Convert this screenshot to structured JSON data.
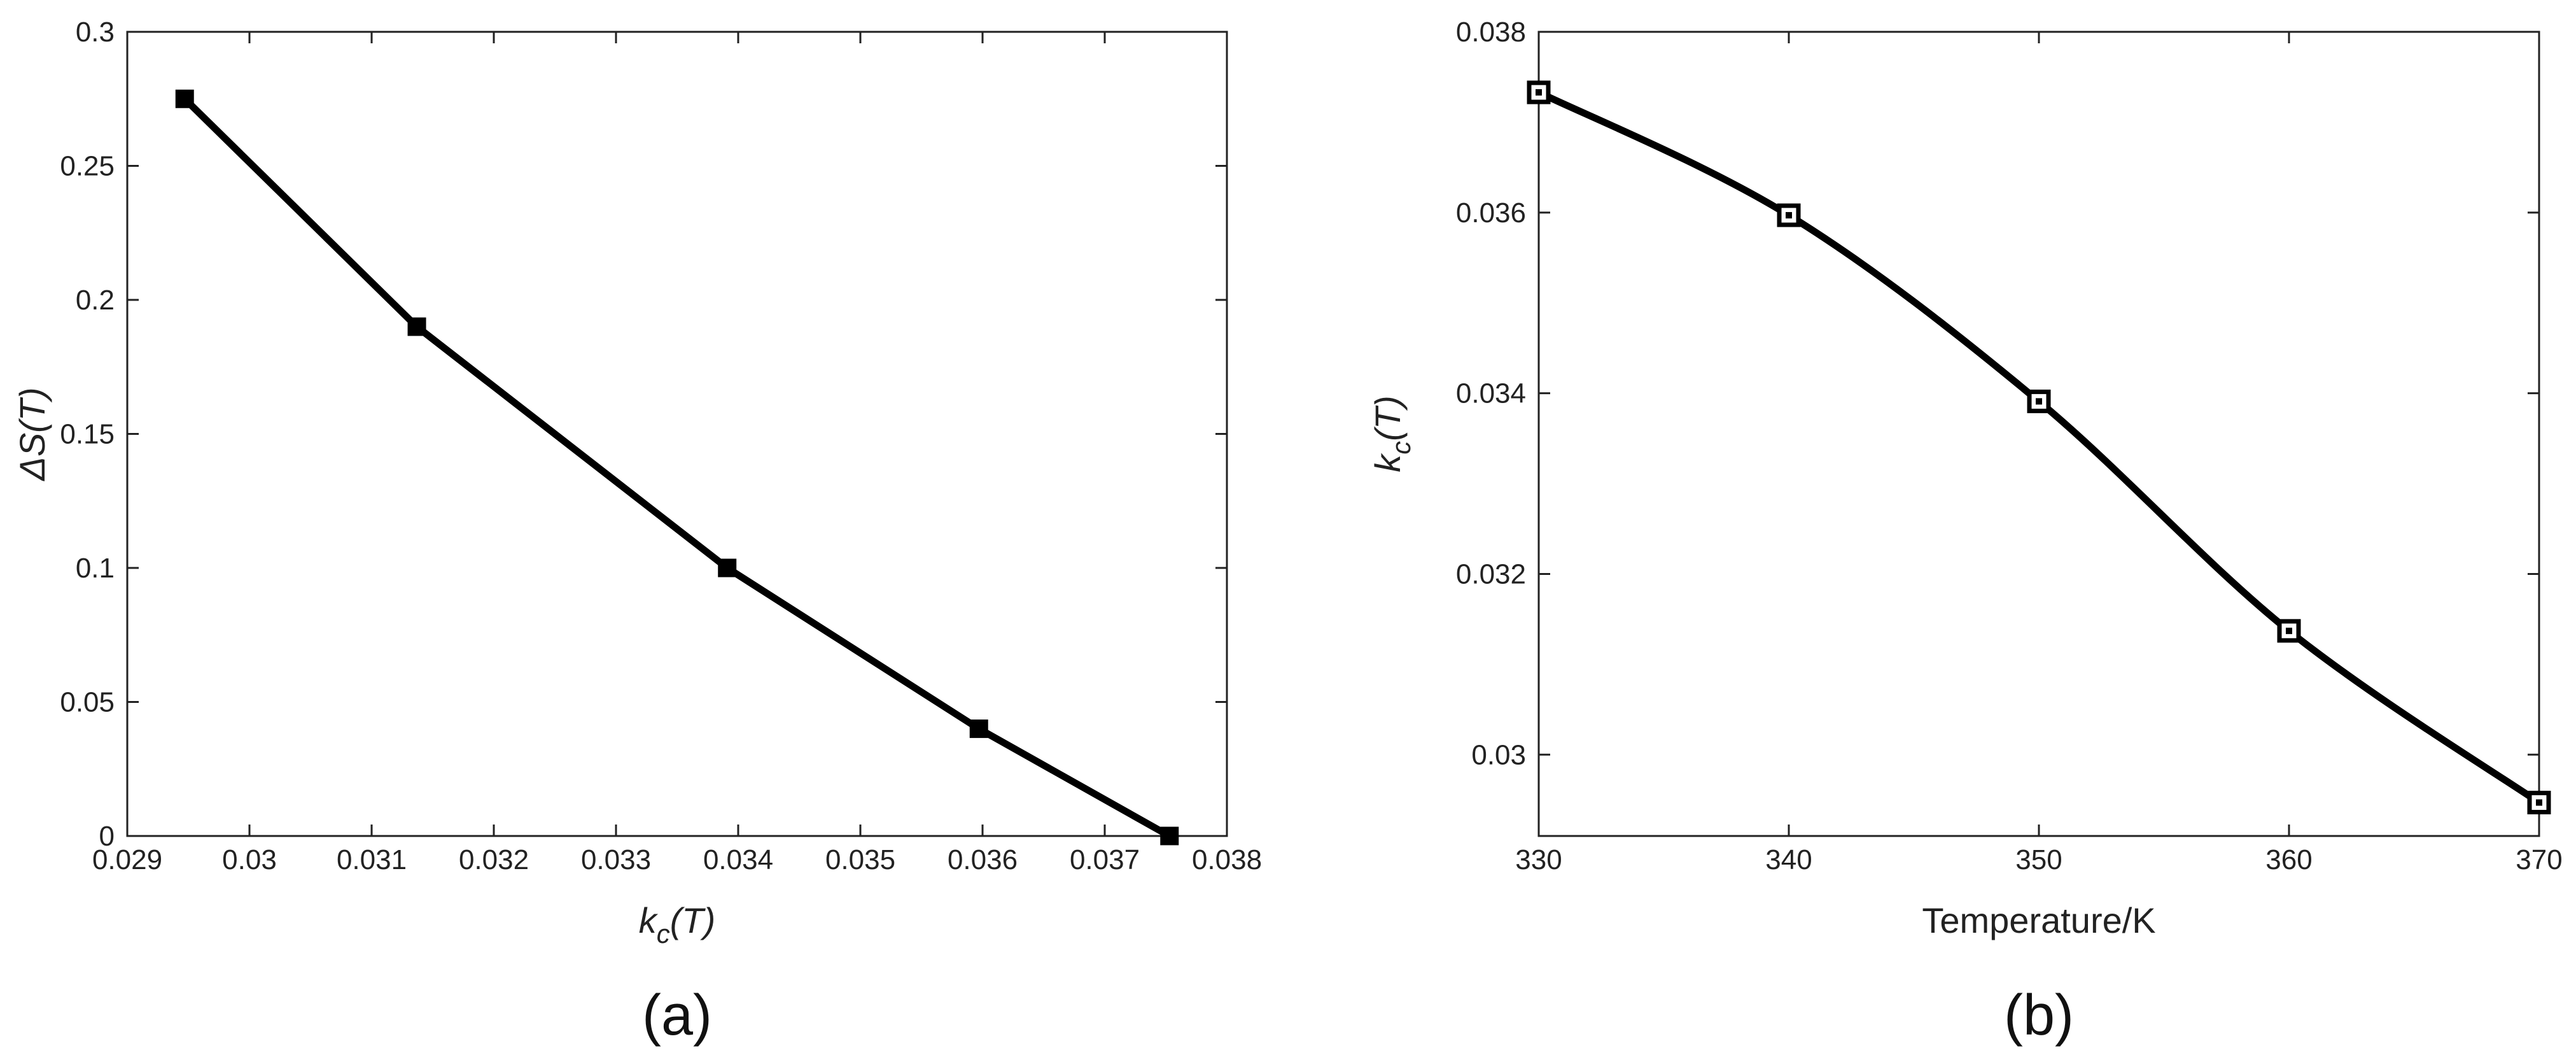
{
  "chart_data": [
    {
      "type": "line",
      "panel_label": "(a)",
      "title": "",
      "xlabel": "k_c(T)",
      "ylabel": "ΔS(T)",
      "xlim": [
        0.029,
        0.038
      ],
      "ylim": [
        0,
        0.3
      ],
      "xticks": [
        0.029,
        0.03,
        0.031,
        0.032,
        0.033,
        0.034,
        0.035,
        0.036,
        0.037,
        0.038
      ],
      "xtick_labels": [
        "0.029",
        "0.03",
        "0.031",
        "0.032",
        "0.033",
        "0.034",
        "0.035",
        "0.036",
        "0.037",
        "0.038"
      ],
      "yticks": [
        0,
        0.05,
        0.1,
        0.15,
        0.2,
        0.25,
        0.3
      ],
      "ytick_labels": [
        "0",
        "0.05",
        "0.1",
        "0.15",
        "0.2",
        "0.25",
        "0.3"
      ],
      "grid": false,
      "marker": "filled-square",
      "smooth": false,
      "series": [
        {
          "x": [
            0.02947,
            0.03137,
            0.03391,
            0.03597,
            0.03753
          ],
          "y": [
            0.275,
            0.19,
            0.1,
            0.04,
            0.0
          ]
        }
      ]
    },
    {
      "type": "line",
      "panel_label": "(b)",
      "title": "",
      "xlabel": "Temperature/K",
      "ylabel": "k_c(T)",
      "xlim": [
        330,
        370
      ],
      "ylim": [
        0.0291,
        0.038
      ],
      "xticks": [
        330,
        340,
        350,
        360,
        370
      ],
      "xtick_labels": [
        "330",
        "340",
        "350",
        "360",
        "370"
      ],
      "yticks": [
        0.03,
        0.032,
        0.034,
        0.036,
        0.038
      ],
      "ytick_labels": [
        "0.03",
        "0.032",
        "0.034",
        "0.036",
        "0.038"
      ],
      "grid": false,
      "marker": "open-square",
      "smooth": true,
      "series": [
        {
          "x": [
            330,
            340,
            350,
            360,
            370
          ],
          "y": [
            0.03733,
            0.03597,
            0.03391,
            0.03137,
            0.02947
          ]
        }
      ]
    }
  ]
}
